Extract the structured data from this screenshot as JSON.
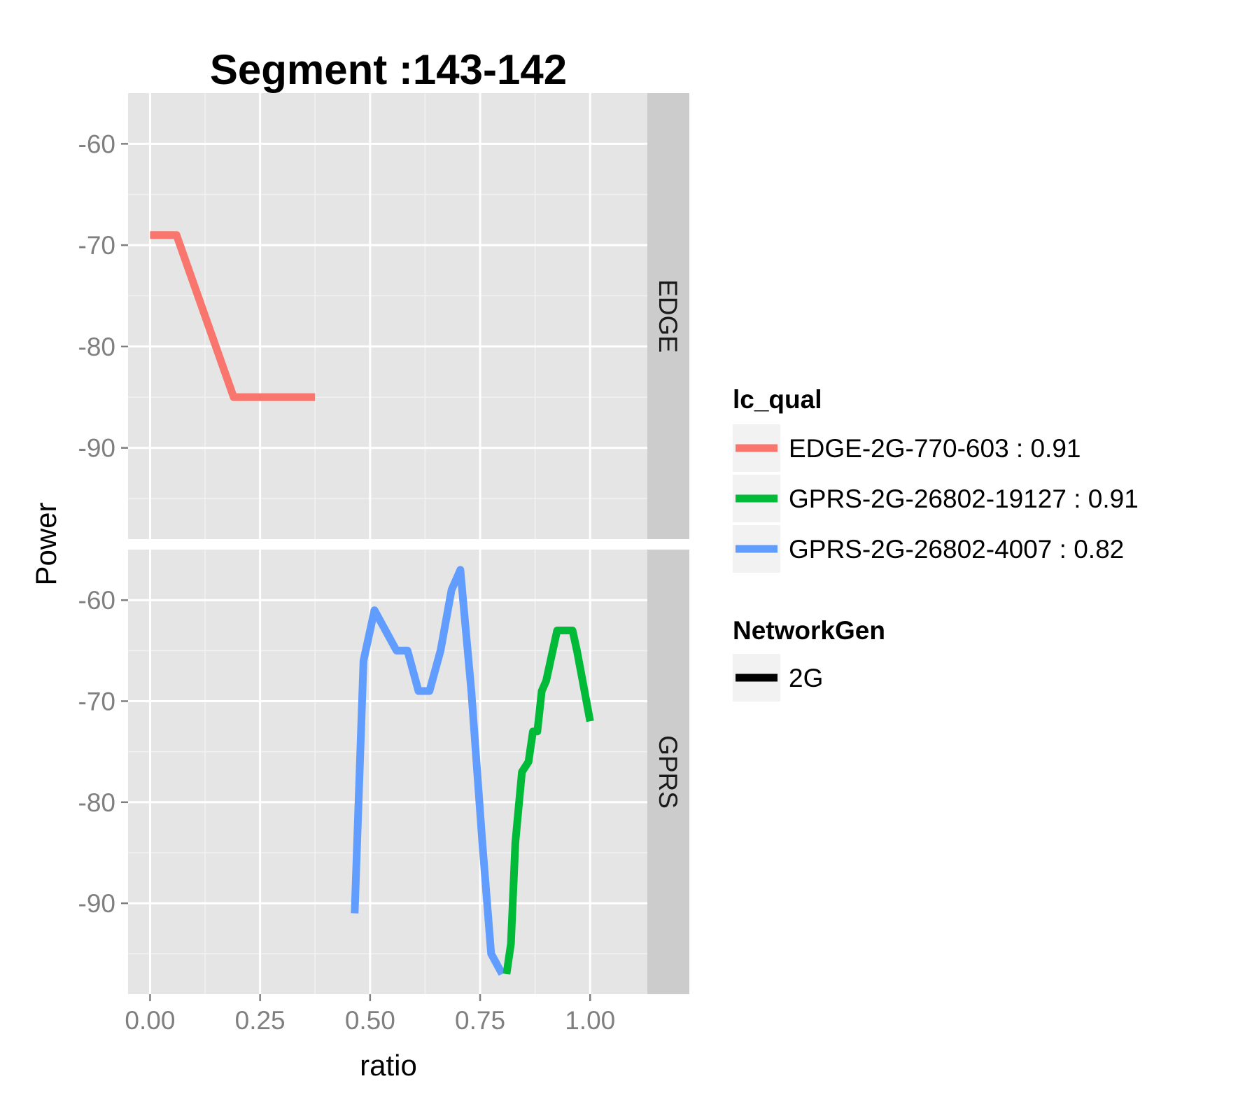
{
  "chart_data": {
    "type": "line",
    "title": "Segment :143-142",
    "xlabel": "ratio",
    "ylabel": "Power",
    "xlim": [
      -0.05,
      1.13
    ],
    "x_ticks": [
      0,
      0.25,
      0.5,
      0.75,
      1
    ],
    "x_tick_labels": [
      "0.00",
      "0.25",
      "0.50",
      "0.75",
      "1.00"
    ],
    "ylim": [
      -99,
      -55
    ],
    "y_ticks": [
      -60,
      -70,
      -80,
      -90
    ],
    "y_tick_labels": [
      "-60",
      "-70",
      "-80",
      "-90"
    ],
    "grid": true,
    "legend_position": "right",
    "facets": [
      {
        "label": "EDGE",
        "series": [
          {
            "name": "EDGE-2G-770-603 : 0.91",
            "color": "#F8766D",
            "x": [
              0.0,
              0.06,
              0.19,
              0.375
            ],
            "y": [
              -69,
              -69,
              -85,
              -85
            ]
          }
        ]
      },
      {
        "label": "GPRS",
        "series": [
          {
            "name": "GPRS-2G-26802-4007 : 0.82",
            "color": "#619CFF",
            "x": [
              0.465,
              0.485,
              0.51,
              0.56,
              0.585,
              0.61,
              0.635,
              0.66,
              0.685,
              0.705,
              0.73,
              0.755,
              0.775,
              0.8
            ],
            "y": [
              -91,
              -66,
              -61,
              -65,
              -65,
              -69,
              -69,
              -65,
              -59,
              -57,
              -69,
              -84,
              -95,
              -97
            ]
          },
          {
            "name": "GPRS-2G-26802-19127 : 0.91",
            "color": "#00BA38",
            "x": [
              0.81,
              0.82,
              0.83,
              0.845,
              0.86,
              0.87,
              0.88,
              0.89,
              0.9,
              0.915,
              0.925,
              0.94,
              0.96,
              0.97,
              1.0
            ],
            "y": [
              -97,
              -94,
              -84,
              -77,
              -76,
              -73,
              -73,
              -69,
              -68,
              -65,
              -63,
              -63,
              -63,
              -65,
              -72
            ]
          }
        ]
      }
    ],
    "legend": {
      "title": "lc_qual",
      "entries": [
        {
          "label": "EDGE-2G-770-603 : 0.91",
          "color": "#F8766D"
        },
        {
          "label": "GPRS-2G-26802-19127 : 0.91",
          "color": "#00BA38"
        },
        {
          "label": "GPRS-2G-26802-4007 : 0.82",
          "color": "#619CFF"
        }
      ]
    },
    "legend2": {
      "title": "NetworkGen",
      "entries": [
        {
          "label": "2G",
          "color": "#000000"
        }
      ]
    }
  }
}
